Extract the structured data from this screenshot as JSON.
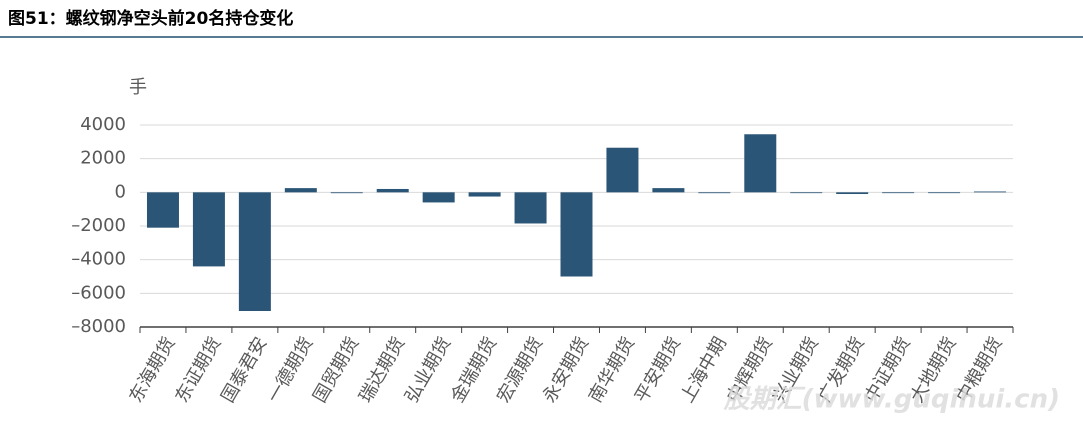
{
  "chart_data": {
    "type": "bar",
    "title": "图51：螺纹钢净空头前20名持仓变化",
    "y_label": "手",
    "watermark": "股期汇(www.guqihui.cn)",
    "categories": [
      "东海期货",
      "东证期货",
      "国泰君安",
      "一德期货",
      "国贸期货",
      "瑞达期货",
      "弘业期货",
      "金瑞期货",
      "宏源期货",
      "永安期货",
      "南华期货",
      "平安期货",
      "上海中期",
      "中辉期货",
      "兴业期货",
      "广发期货",
      "中证期货",
      "大地期货",
      "中粮期货"
    ],
    "values": [
      -2100,
      -4400,
      -7050,
      250,
      -50,
      200,
      -600,
      -250,
      -1850,
      -5000,
      2650,
      250,
      -50,
      3450,
      0,
      -100,
      0,
      0,
      50
    ],
    "color": "#2b5576",
    "ylim": [
      -8000,
      4000
    ],
    "yticks": [
      {
        "value": -8000,
        "label": "–8000"
      },
      {
        "value": -6000,
        "label": "–6000"
      },
      {
        "value": -4000,
        "label": "–4000"
      },
      {
        "value": -2000,
        "label": "–2000"
      },
      0,
      2000,
      4000
    ],
    "grid": true
  }
}
